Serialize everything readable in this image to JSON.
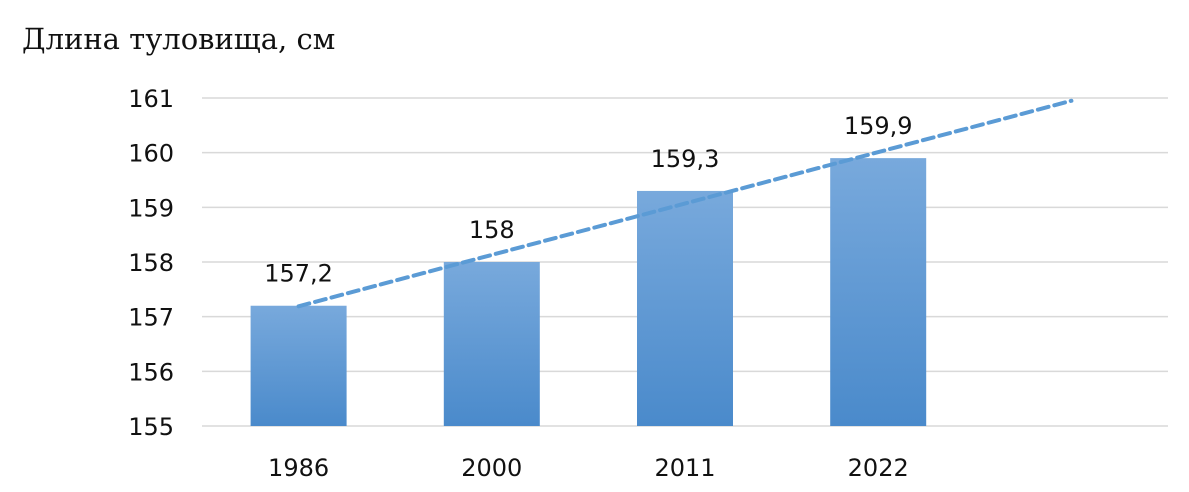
{
  "chart_data": {
    "type": "bar",
    "title": "",
    "ylabel": "Длина туловища, см",
    "xlabel": "",
    "categories": [
      "1986",
      "2000",
      "2011",
      "2022"
    ],
    "values": [
      157.2,
      158,
      159.3,
      159.9
    ],
    "value_labels": [
      "157,2",
      "158",
      "159,3",
      "159,9"
    ],
    "ylim": [
      155,
      161
    ],
    "yticks": [
      155,
      156,
      157,
      158,
      159,
      160,
      161
    ],
    "ytick_labels": [
      "155",
      "156",
      "157",
      "158",
      "159",
      "160",
      "161"
    ],
    "grid": true,
    "legend": "none",
    "bar_color_top": "#78a9dc",
    "bar_color_bottom": "#4a8acb",
    "trendline": {
      "type": "linear",
      "style": "dashed",
      "color": "#5b9bd5",
      "forward_periods": 1
    }
  }
}
